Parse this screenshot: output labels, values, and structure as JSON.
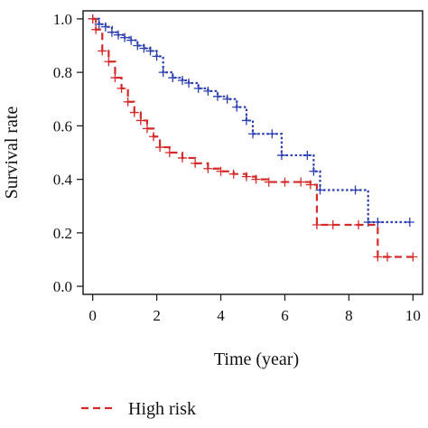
{
  "chart_data": {
    "type": "line",
    "title": "",
    "xlabel": "Time (year)",
    "ylabel": "Survival rate",
    "xlim": [
      -0.3,
      10.3
    ],
    "ylim": [
      -0.03,
      1.03
    ],
    "x_ticks": [
      0,
      2,
      4,
      6,
      8,
      10
    ],
    "x_tick_labels": [
      "0",
      "2",
      "4",
      "6",
      "8",
      "10"
    ],
    "y_ticks": [
      0.0,
      0.2,
      0.4,
      0.6,
      0.8,
      1.0
    ],
    "y_tick_labels": [
      "0.0",
      "0.2",
      "0.4",
      "0.6",
      "0.8",
      "1.0"
    ],
    "grid": false,
    "legend_position": "bottom-left",
    "series": [
      {
        "name": "",
        "color": "#2b3fb0",
        "line_style": "dotted",
        "x": [
          0,
          0.2,
          0.4,
          0.6,
          0.8,
          1.0,
          1.2,
          1.4,
          1.6,
          1.8,
          2.0,
          2.2,
          2.5,
          2.8,
          3.0,
          3.3,
          3.6,
          3.9,
          4.2,
          4.5,
          4.8,
          5.0,
          5.6,
          5.9,
          6.7,
          6.9,
          7.1,
          8.2,
          8.6,
          8.9,
          9.9
        ],
        "y": [
          1.0,
          0.98,
          0.97,
          0.95,
          0.94,
          0.93,
          0.92,
          0.9,
          0.89,
          0.88,
          0.86,
          0.8,
          0.78,
          0.77,
          0.76,
          0.74,
          0.73,
          0.71,
          0.7,
          0.67,
          0.62,
          0.57,
          0.57,
          0.49,
          0.49,
          0.43,
          0.36,
          0.36,
          0.24,
          0.24,
          0.24
        ]
      },
      {
        "name": "High risk",
        "color": "#d42a2a",
        "line_style": "dashed",
        "x": [
          0,
          0.1,
          0.3,
          0.5,
          0.7,
          0.9,
          1.1,
          1.3,
          1.5,
          1.7,
          1.9,
          2.1,
          2.4,
          2.8,
          3.2,
          3.6,
          4.0,
          4.4,
          4.8,
          5.1,
          5.5,
          6.0,
          6.5,
          6.8,
          7.0,
          7.5,
          8.3,
          8.9,
          9.2,
          10.0
        ],
        "y": [
          1.0,
          0.96,
          0.88,
          0.84,
          0.78,
          0.74,
          0.69,
          0.65,
          0.62,
          0.59,
          0.56,
          0.52,
          0.5,
          0.48,
          0.46,
          0.44,
          0.43,
          0.42,
          0.41,
          0.4,
          0.39,
          0.39,
          0.39,
          0.38,
          0.23,
          0.23,
          0.23,
          0.11,
          0.11,
          0.11
        ]
      }
    ],
    "legend": [
      {
        "series_index": 1,
        "label": "High risk"
      }
    ]
  }
}
